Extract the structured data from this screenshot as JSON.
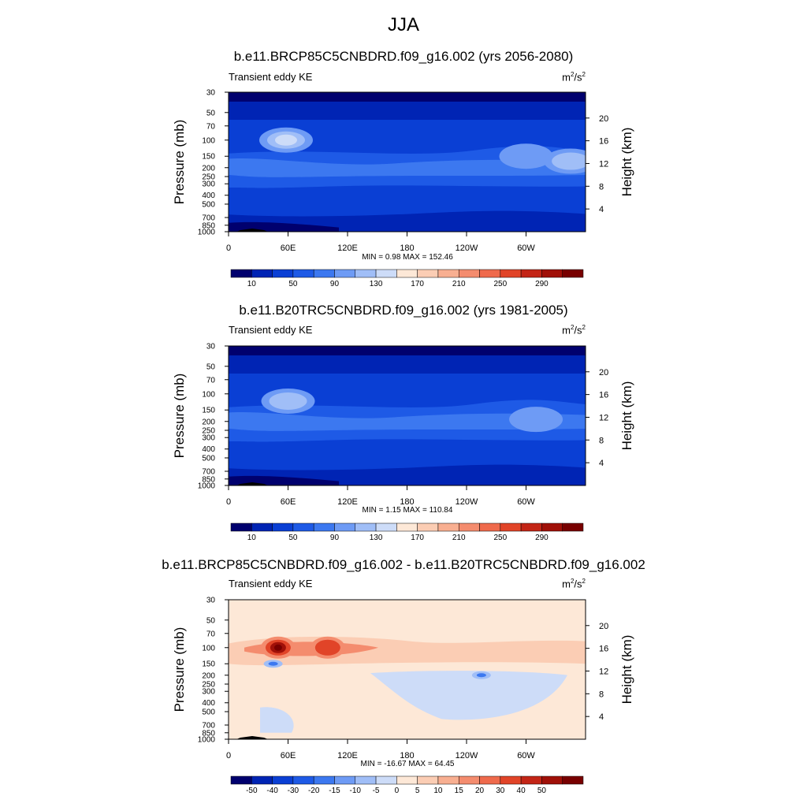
{
  "figure": {
    "title": "JJA"
  },
  "panels": [
    {
      "title": "b.e11.BRCP85C5CNBDRD.f09_g16.002 (yrs 2056-2080)",
      "field_label": "Transient eddy KE",
      "units_base": "m",
      "units_exp1": "2",
      "units_mid": "/s",
      "units_exp2": "2",
      "minmax": "MIN =   0.98  MAX = 152.46"
    },
    {
      "title": "b.e11.B20TRC5CNBDRD.f09_g16.002 (yrs 1981-2005)",
      "field_label": "Transient eddy KE",
      "units_base": "m",
      "units_exp1": "2",
      "units_mid": "/s",
      "units_exp2": "2",
      "minmax": "MIN =   1.15  MAX = 110.84"
    },
    {
      "title": "b.e11.BRCP85C5CNBDRD.f09_g16.002 - b.e11.B20TRC5CNBDRD.f09_g16.002",
      "field_label": "Transient eddy KE",
      "units_base": "m",
      "units_exp1": "2",
      "units_mid": "/s",
      "units_exp2": "2",
      "minmax": "MIN = -16.67  MAX =  64.45"
    }
  ],
  "chart_data": [
    {
      "type": "heatmap",
      "subtype": "pressure-longitude contour",
      "title": "b.e11.BRCP85C5CNBDRD.f09_g16.002 (yrs 2056-2080)",
      "ylabel": "Pressure (mb)",
      "ylabel_right": "Height (km)",
      "x_ticks": [
        "0",
        "60E",
        "120E",
        "180",
        "120W",
        "60W"
      ],
      "y_ticks": [
        "30",
        "50",
        "70",
        "100",
        "150",
        "200",
        "250",
        "300",
        "400",
        "500",
        "700",
        "850",
        "1000"
      ],
      "y_right_ticks": [
        "20",
        "16",
        "12",
        "8",
        "4"
      ],
      "colorbar_labels": [
        "10",
        "50",
        "90",
        "130",
        "170",
        "210",
        "250",
        "290"
      ],
      "colorbar_colors": [
        "#00006e",
        "#0024b4",
        "#0a3fd4",
        "#1e5ae6",
        "#3c78f0",
        "#6e9bf5",
        "#a0bef7",
        "#cddcf8",
        "#fde8d7",
        "#fbcdb4",
        "#f8af91",
        "#f48c6e",
        "#ef6a4c",
        "#e14428",
        "#c32516",
        "#a01008",
        "#780000"
      ],
      "min": 0.98,
      "max": 152.46,
      "features": [
        {
          "lon": 58,
          "p": 100,
          "value": 150
        },
        {
          "lon": 300,
          "p": 150,
          "value": 90
        },
        {
          "lon": 345,
          "p": 170,
          "value": 95
        }
      ]
    },
    {
      "type": "heatmap",
      "subtype": "pressure-longitude contour",
      "title": "b.e11.B20TRC5CNBDRD.f09_g16.002 (yrs 1981-2005)",
      "ylabel": "Pressure (mb)",
      "ylabel_right": "Height (km)",
      "x_ticks": [
        "0",
        "60E",
        "120E",
        "180",
        "120W",
        "60W"
      ],
      "y_ticks": [
        "30",
        "50",
        "70",
        "100",
        "150",
        "200",
        "250",
        "300",
        "400",
        "500",
        "700",
        "850",
        "1000"
      ],
      "y_right_ticks": [
        "20",
        "16",
        "12",
        "8",
        "4"
      ],
      "colorbar_labels": [
        "10",
        "50",
        "90",
        "130",
        "170",
        "210",
        "250",
        "290"
      ],
      "colorbar_colors": [
        "#00006e",
        "#0024b4",
        "#0a3fd4",
        "#1e5ae6",
        "#3c78f0",
        "#6e9bf5",
        "#a0bef7",
        "#cddcf8",
        "#fde8d7",
        "#fbcdb4",
        "#f8af91",
        "#f48c6e",
        "#ef6a4c",
        "#e14428",
        "#c32516",
        "#a01008",
        "#780000"
      ],
      "min": 1.15,
      "max": 110.84,
      "features": [
        {
          "lon": 60,
          "p": 120,
          "value": 100
        },
        {
          "lon": 310,
          "p": 190,
          "value": 70
        }
      ]
    },
    {
      "type": "heatmap",
      "subtype": "pressure-longitude contour",
      "title": "b.e11.BRCP85C5CNBDRD.f09_g16.002 - b.e11.B20TRC5CNBDRD.f09_g16.002",
      "ylabel": "Pressure (mb)",
      "ylabel_right": "Height (km)",
      "x_ticks": [
        "0",
        "60E",
        "120E",
        "180",
        "120W",
        "60W"
      ],
      "y_ticks": [
        "30",
        "50",
        "70",
        "100",
        "150",
        "200",
        "250",
        "300",
        "400",
        "500",
        "700",
        "850",
        "1000"
      ],
      "y_right_ticks": [
        "20",
        "16",
        "12",
        "8",
        "4"
      ],
      "colorbar_labels": [
        "-50",
        "-40",
        "-30",
        "-20",
        "-15",
        "-10",
        "-5",
        "0",
        "5",
        "10",
        "15",
        "20",
        "30",
        "40",
        "50"
      ],
      "colorbar_colors": [
        "#00006e",
        "#0024b4",
        "#0a3fd4",
        "#1e5ae6",
        "#3c78f0",
        "#6e9bf5",
        "#a0bef7",
        "#cddcf8",
        "#fde8d7",
        "#fbcdb4",
        "#f8af91",
        "#f48c6e",
        "#ef6a4c",
        "#e14428",
        "#c32516",
        "#a01008",
        "#780000"
      ],
      "min": -16.67,
      "max": 64.45,
      "features": [
        {
          "lon": 50,
          "p": 100,
          "value": 60
        },
        {
          "lon": 100,
          "p": 100,
          "value": 25
        },
        {
          "lon": 45,
          "p": 150,
          "value": -15
        },
        {
          "lon": 255,
          "p": 200,
          "value": -10
        }
      ]
    }
  ]
}
